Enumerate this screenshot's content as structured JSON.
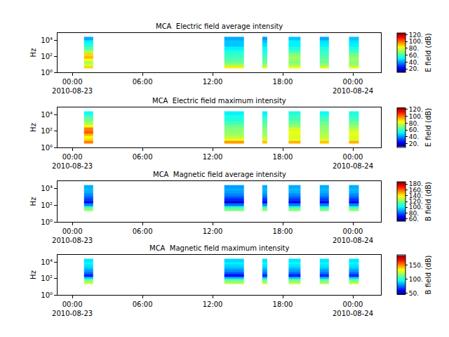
{
  "chart_data": [
    {
      "type": "heatmap",
      "title": "MCA  Electric field average intensity",
      "ylabel": "Hz",
      "colorbar_label": "E field (dB)",
      "log": "y",
      "grid": false,
      "xlim": [
        "2010-08-22 22:44",
        "2010-08-24 02:24"
      ],
      "xticks": [
        {
          "value": "2010-08-23 00:00",
          "label": "00:00\n2010-08-23"
        },
        {
          "value": "2010-08-23 06:00",
          "label": "06:00"
        },
        {
          "value": "2010-08-23 12:00",
          "label": "12:00"
        },
        {
          "value": "2010-08-23 18:00",
          "label": "18:00"
        },
        {
          "value": "2010-08-24 00:00",
          "label": "00:00\n2010-08-24"
        }
      ],
      "ylim": [
        1,
        74000
      ],
      "yticks": [
        {
          "value": 1,
          "label": "10⁰"
        },
        {
          "value": 100,
          "label": "10²"
        },
        {
          "value": 10000,
          "label": "10⁴"
        }
      ],
      "y_edges": [
        3,
        6,
        12,
        25,
        50,
        100,
        250,
        600,
        1500,
        4000,
        10000,
        25000
      ],
      "bursts": [
        {
          "x": [
            "2010-08-23 01:00",
            "2010-08-23 01:45"
          ],
          "values": [
            88,
            78,
            72,
            82,
            92,
            88,
            72,
            62,
            55,
            50,
            42
          ]
        },
        {
          "x": [
            "2010-08-23 13:00",
            "2010-08-23 14:40"
          ],
          "values": [
            85,
            72,
            65,
            62,
            60,
            58,
            55,
            50,
            45,
            45,
            42
          ]
        },
        {
          "x": [
            "2010-08-23 16:15",
            "2010-08-23 16:40"
          ],
          "values": [
            80,
            70,
            65,
            62,
            60,
            58,
            55,
            52,
            48,
            45,
            40
          ]
        },
        {
          "x": [
            "2010-08-23 18:30",
            "2010-08-23 19:30"
          ],
          "values": [
            82,
            72,
            68,
            70,
            72,
            68,
            60,
            55,
            50,
            50,
            45
          ]
        },
        {
          "x": [
            "2010-08-23 21:10",
            "2010-08-23 21:55"
          ],
          "values": [
            80,
            70,
            65,
            65,
            62,
            60,
            58,
            55,
            50,
            48,
            42
          ]
        },
        {
          "x": [
            "2010-08-23 23:40",
            "2010-08-24 00:30"
          ],
          "values": [
            82,
            70,
            68,
            72,
            70,
            65,
            60,
            55,
            50,
            48,
            45
          ]
        }
      ],
      "zlim": [
        10,
        125
      ],
      "zticks": [
        {
          "value": 20,
          "label": "20."
        },
        {
          "value": 40,
          "label": "40."
        },
        {
          "value": 60,
          "label": "60."
        },
        {
          "value": 80,
          "label": "80."
        },
        {
          "value": 100,
          "label": "100."
        },
        {
          "value": 120,
          "label": "120."
        }
      ]
    },
    {
      "type": "heatmap",
      "title": "MCA  Electric field maximum intensity",
      "ylabel": "Hz",
      "colorbar_label": "E field (dB)",
      "log": "y",
      "grid": false,
      "xlim": [
        "2010-08-22 22:44",
        "2010-08-24 02:24"
      ],
      "xticks": [
        {
          "value": "2010-08-23 00:00",
          "label": "00:00\n2010-08-23"
        },
        {
          "value": "2010-08-23 06:00",
          "label": "06:00"
        },
        {
          "value": "2010-08-23 12:00",
          "label": "12:00"
        },
        {
          "value": "2010-08-23 18:00",
          "label": "18:00"
        },
        {
          "value": "2010-08-24 00:00",
          "label": "00:00\n2010-08-24"
        }
      ],
      "ylim": [
        1,
        74000
      ],
      "yticks": [
        {
          "value": 1,
          "label": "10⁰"
        },
        {
          "value": 100,
          "label": "10²"
        },
        {
          "value": 10000,
          "label": "10⁴"
        }
      ],
      "y_edges": [
        3,
        6,
        12,
        25,
        50,
        100,
        250,
        600,
        1500,
        4000,
        10000,
        25000
      ],
      "bursts": [
        {
          "x": [
            "2010-08-23 01:00",
            "2010-08-23 01:45"
          ],
          "values": [
            98,
            88,
            82,
            92,
            102,
            98,
            82,
            72,
            65,
            60,
            52
          ]
        },
        {
          "x": [
            "2010-08-23 13:00",
            "2010-08-23 14:40"
          ],
          "values": [
            95,
            82,
            75,
            72,
            70,
            68,
            65,
            60,
            55,
            55,
            50
          ]
        },
        {
          "x": [
            "2010-08-23 16:15",
            "2010-08-23 16:40"
          ],
          "values": [
            90,
            80,
            75,
            72,
            70,
            68,
            65,
            62,
            58,
            55,
            50
          ]
        },
        {
          "x": [
            "2010-08-23 18:30",
            "2010-08-23 19:30"
          ],
          "values": [
            92,
            82,
            78,
            80,
            82,
            78,
            70,
            65,
            60,
            60,
            55
          ]
        },
        {
          "x": [
            "2010-08-23 21:10",
            "2010-08-23 21:55"
          ],
          "values": [
            90,
            80,
            75,
            75,
            72,
            70,
            68,
            65,
            60,
            58,
            52
          ]
        },
        {
          "x": [
            "2010-08-23 23:40",
            "2010-08-24 00:30"
          ],
          "values": [
            92,
            80,
            78,
            82,
            80,
            75,
            70,
            65,
            60,
            58,
            55
          ]
        }
      ],
      "zlim": [
        10,
        125
      ],
      "zticks": [
        {
          "value": 20,
          "label": "20."
        },
        {
          "value": 40,
          "label": "40."
        },
        {
          "value": 60,
          "label": "60."
        },
        {
          "value": 80,
          "label": "80."
        },
        {
          "value": 100,
          "label": "100."
        },
        {
          "value": 120,
          "label": "120."
        }
      ]
    },
    {
      "type": "heatmap",
      "title": "MCA  Magnetic field average intensity",
      "ylabel": "Hz",
      "colorbar_label": "B field (dB)",
      "log": "y",
      "grid": false,
      "xlim": [
        "2010-08-22 22:44",
        "2010-08-24 02:24"
      ],
      "xticks": [
        {
          "value": "2010-08-23 00:00",
          "label": "00:00\n2010-08-23"
        },
        {
          "value": "2010-08-23 06:00",
          "label": "06:00"
        },
        {
          "value": "2010-08-23 12:00",
          "label": "12:00"
        },
        {
          "value": "2010-08-23 18:00",
          "label": "18:00"
        },
        {
          "value": "2010-08-24 00:00",
          "label": "00:00\n2010-08-24"
        }
      ],
      "ylim": [
        1,
        74000
      ],
      "yticks": [
        {
          "value": 1,
          "label": "10⁰"
        },
        {
          "value": 100,
          "label": "10²"
        },
        {
          "value": 10000,
          "label": "10⁴"
        }
      ],
      "y_edges": [
        20,
        40,
        80,
        150,
        300,
        600,
        1200,
        2500,
        5000,
        10000,
        25000
      ],
      "bursts": [
        {
          "x": [
            "2010-08-23 01:00",
            "2010-08-23 01:45"
          ],
          "values": [
            122,
            110,
            85,
            65,
            75,
            80,
            85,
            90,
            92,
            90
          ]
        },
        {
          "x": [
            "2010-08-23 13:00",
            "2010-08-23 14:40"
          ],
          "values": [
            118,
            108,
            82,
            62,
            72,
            78,
            84,
            88,
            90,
            88
          ]
        },
        {
          "x": [
            "2010-08-23 16:15",
            "2010-08-23 16:40"
          ],
          "values": [
            120,
            110,
            86,
            66,
            74,
            80,
            86,
            90,
            92,
            90
          ]
        },
        {
          "x": [
            "2010-08-23 18:30",
            "2010-08-23 19:30"
          ],
          "values": [
            120,
            108,
            84,
            64,
            74,
            80,
            85,
            90,
            92,
            90
          ]
        },
        {
          "x": [
            "2010-08-23 21:10",
            "2010-08-23 21:55"
          ],
          "values": [
            118,
            106,
            84,
            66,
            75,
            80,
            86,
            90,
            92,
            90
          ]
        },
        {
          "x": [
            "2010-08-23 23:40",
            "2010-08-24 00:30"
          ],
          "values": [
            120,
            108,
            85,
            65,
            74,
            80,
            85,
            90,
            92,
            90
          ]
        }
      ],
      "zlim": [
        52,
        188
      ],
      "zticks": [
        {
          "value": 60,
          "label": "60."
        },
        {
          "value": 80,
          "label": "80."
        },
        {
          "value": 100,
          "label": "100."
        },
        {
          "value": 120,
          "label": "120."
        },
        {
          "value": 140,
          "label": "140."
        },
        {
          "value": 160,
          "label": "160."
        },
        {
          "value": 180,
          "label": "180."
        }
      ]
    },
    {
      "type": "heatmap",
      "title": "MCA  Magnetic field maximum intensity",
      "ylabel": "Hz",
      "colorbar_label": "B field (dB)",
      "log": "y",
      "grid": false,
      "xlim": [
        "2010-08-22 22:44",
        "2010-08-24 02:24"
      ],
      "xticks": [
        {
          "value": "2010-08-23 00:00",
          "label": "00:00\n2010-08-23"
        },
        {
          "value": "2010-08-23 06:00",
          "label": "06:00"
        },
        {
          "value": "2010-08-23 12:00",
          "label": "12:00"
        },
        {
          "value": "2010-08-23 18:00",
          "label": "18:00"
        },
        {
          "value": "2010-08-24 00:00",
          "label": "00:00\n2010-08-24"
        }
      ],
      "ylim": [
        1,
        74000
      ],
      "yticks": [
        {
          "value": 1,
          "label": "10⁰"
        },
        {
          "value": 100,
          "label": "10²"
        },
        {
          "value": 10000,
          "label": "10⁴"
        }
      ],
      "y_edges": [
        20,
        40,
        80,
        150,
        300,
        600,
        1200,
        2500,
        5000,
        10000,
        25000
      ],
      "bursts": [
        {
          "x": [
            "2010-08-23 01:00",
            "2010-08-23 01:45"
          ],
          "values": [
            125,
            115,
            90,
            65,
            75,
            82,
            88,
            92,
            95,
            92
          ]
        },
        {
          "x": [
            "2010-08-23 13:00",
            "2010-08-23 14:40"
          ],
          "values": [
            122,
            112,
            88,
            62,
            72,
            80,
            86,
            90,
            94,
            90
          ]
        },
        {
          "x": [
            "2010-08-23 16:15",
            "2010-08-23 16:40"
          ],
          "values": [
            124,
            114,
            90,
            66,
            76,
            82,
            88,
            92,
            95,
            92
          ]
        },
        {
          "x": [
            "2010-08-23 18:30",
            "2010-08-23 19:30"
          ],
          "values": [
            124,
            113,
            89,
            64,
            75,
            82,
            87,
            92,
            95,
            92
          ]
        },
        {
          "x": [
            "2010-08-23 21:10",
            "2010-08-23 21:55"
          ],
          "values": [
            122,
            112,
            88,
            66,
            76,
            82,
            88,
            92,
            95,
            92
          ]
        },
        {
          "x": [
            "2010-08-23 23:40",
            "2010-08-24 00:30"
          ],
          "values": [
            124,
            113,
            90,
            65,
            75,
            82,
            88,
            92,
            95,
            92
          ]
        }
      ],
      "zlim": [
        45,
        185
      ],
      "zticks": [
        {
          "value": 50,
          "label": "50."
        },
        {
          "value": 100,
          "label": "100."
        },
        {
          "value": 150,
          "label": "150."
        }
      ]
    }
  ]
}
